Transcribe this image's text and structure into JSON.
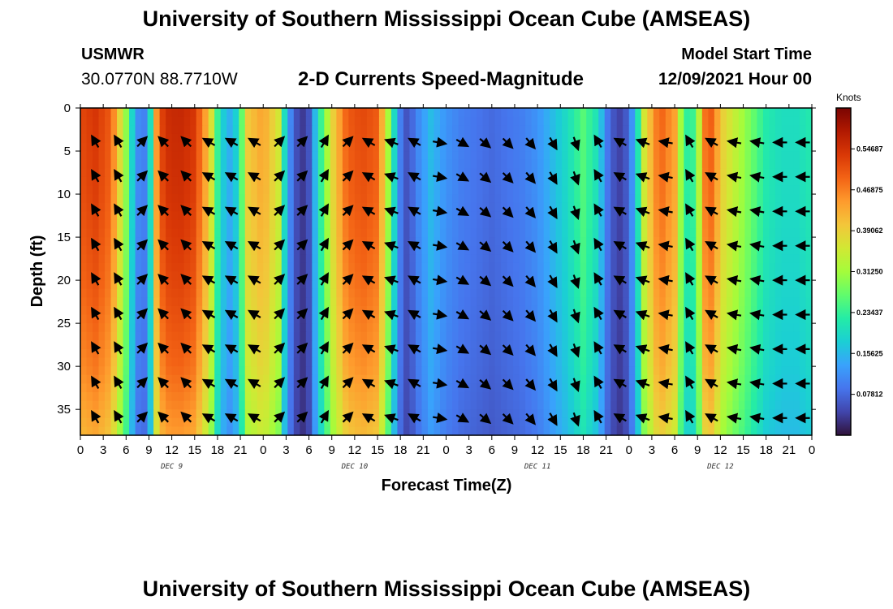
{
  "header": {
    "title": "University of Southern Mississippi Ocean Cube (AMSEAS)",
    "station": "USMWR",
    "coordinates": "30.0770N  88.7710W",
    "subtitle": "2-D Currents Speed-Magnitude",
    "model_start_label": "Model Start Time",
    "model_start_value": "12/09/2021 Hour 00"
  },
  "footer": {
    "title": "University of Southern Mississippi Ocean Cube (AMSEAS)"
  },
  "chart_data": {
    "type": "heatmap",
    "title": "2-D Currents Speed-Magnitude",
    "xlabel": "Forecast Time(Z)",
    "ylabel": "Depth (ft)",
    "x_range_hours": [
      0,
      96
    ],
    "y_range_ft": [
      0,
      38
    ],
    "x_tick_labels": [
      "0",
      "3",
      "6",
      "9",
      "12",
      "15",
      "18",
      "21",
      "0",
      "3",
      "6",
      "9",
      "12",
      "15",
      "18",
      "21",
      "0",
      "3",
      "6",
      "9",
      "12",
      "15",
      "18",
      "21",
      "0",
      "3",
      "6",
      "9",
      "12",
      "15",
      "18",
      "21",
      "0"
    ],
    "y_tick_labels": [
      "0",
      "5",
      "10",
      "15",
      "20",
      "25",
      "30",
      "35"
    ],
    "y_tick_values": [
      0,
      5,
      10,
      15,
      20,
      25,
      30,
      35
    ],
    "day_labels": [
      {
        "label": "DEC 9",
        "hour": 12
      },
      {
        "label": "DEC 10",
        "hour": 36
      },
      {
        "label": "DEC 11",
        "hour": 60
      },
      {
        "label": "DEC 12",
        "hour": 84
      }
    ],
    "colorbar": {
      "unit": "Knots",
      "min": 0,
      "max": 0.625,
      "tick_labels": [
        "0.54687",
        "0.46875",
        "0.39062",
        "0.31250",
        "0.23437",
        "0.15625",
        "0.07812"
      ],
      "tick_values": [
        0.54687,
        0.46875,
        0.39062,
        0.3125,
        0.23437,
        0.15625,
        0.07812
      ],
      "colors": [
        "#30123b",
        "#4145ab",
        "#4675ed",
        "#39a2fc",
        "#1bcfd4",
        "#24eca6",
        "#61fc6c",
        "#a4fc3b",
        "#d1e834",
        "#f3c63a",
        "#fe9b2d",
        "#f36315",
        "#d93806",
        "#b11901",
        "#7a0402"
      ]
    },
    "speed_profile_hours": [
      0,
      2,
      4,
      6,
      7,
      8,
      9,
      10,
      11,
      13,
      15,
      17,
      18,
      19,
      20,
      21,
      22,
      24,
      26,
      27,
      28,
      29,
      30,
      31,
      33,
      35,
      37,
      39,
      40,
      41,
      42,
      43,
      44,
      46,
      48,
      50,
      52,
      54,
      56,
      58,
      60,
      62,
      64,
      66,
      68,
      69,
      70,
      71,
      72,
      73,
      74,
      76,
      78,
      79,
      80,
      81,
      82,
      83,
      84,
      86,
      88,
      90,
      92,
      94,
      96
    ],
    "speed_profile_knots": [
      0.52,
      0.54,
      0.5,
      0.3,
      0.16,
      0.08,
      0.14,
      0.45,
      0.55,
      0.56,
      0.54,
      0.4,
      0.24,
      0.16,
      0.14,
      0.24,
      0.4,
      0.44,
      0.36,
      0.16,
      0.07,
      0.03,
      0.06,
      0.18,
      0.38,
      0.5,
      0.52,
      0.5,
      0.38,
      0.22,
      0.1,
      0.05,
      0.1,
      0.16,
      0.12,
      0.1,
      0.09,
      0.08,
      0.09,
      0.1,
      0.12,
      0.16,
      0.2,
      0.26,
      0.2,
      0.1,
      0.06,
      0.04,
      0.08,
      0.18,
      0.36,
      0.5,
      0.44,
      0.28,
      0.2,
      0.3,
      0.48,
      0.5,
      0.4,
      0.34,
      0.28,
      0.22,
      0.2,
      0.2,
      0.22
    ],
    "depth_factor_ft": [
      0,
      10,
      20,
      30,
      38
    ],
    "depth_factor": [
      1.0,
      0.98,
      0.94,
      0.88,
      0.8
    ],
    "arrow_hours": [
      2,
      5,
      8,
      11,
      14,
      17,
      20,
      23,
      26,
      29,
      32,
      35,
      38,
      41,
      44,
      47,
      50,
      53,
      56,
      59,
      62,
      65,
      68,
      71,
      74,
      77,
      80,
      83,
      86,
      89,
      92,
      95
    ],
    "arrow_depths_ft": [
      4,
      8,
      12,
      16,
      20,
      24,
      28,
      32,
      36
    ],
    "arrow_directions_deg": [
      330,
      330,
      45,
      315,
      315,
      300,
      300,
      300,
      45,
      45,
      30,
      45,
      300,
      290,
      300,
      100,
      120,
      130,
      135,
      140,
      150,
      160,
      330,
      300,
      290,
      280,
      330,
      300,
      280,
      280,
      270,
      270
    ]
  }
}
